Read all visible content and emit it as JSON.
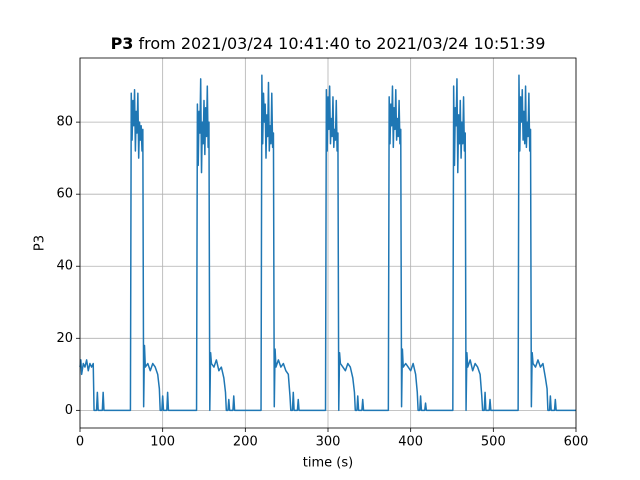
{
  "chart_data": {
    "type": "line",
    "title_prefix": "P3",
    "title": "from 2021/03/24 10:41:40 to 2021/03/24 10:51:39",
    "x_label": "time (s)",
    "y_label": "P3",
    "xlim": [
      0,
      600
    ],
    "ylim": [
      -4.9,
      97.8
    ],
    "xticks": [
      0,
      100,
      200,
      300,
      400,
      500,
      600
    ],
    "yticks": [
      0,
      20,
      40,
      60,
      80
    ],
    "grid": true,
    "x": [
      0,
      1,
      2,
      4,
      6,
      8,
      10,
      12,
      14,
      16,
      17,
      20,
      21,
      22,
      27,
      28,
      29,
      61,
      62,
      63,
      64,
      65,
      66,
      67,
      68,
      69,
      70,
      71,
      72,
      73,
      74,
      75,
      76,
      77,
      78,
      79,
      82,
      85,
      88,
      91,
      94,
      96,
      97,
      99,
      100,
      101,
      105,
      106,
      107,
      141,
      142,
      143,
      144,
      145,
      146,
      147,
      148,
      149,
      150,
      151,
      152,
      153,
      154,
      155,
      156,
      157,
      158,
      159,
      162,
      165,
      168,
      171,
      174,
      176,
      177,
      179,
      180,
      181,
      185,
      186,
      187,
      219,
      220,
      221,
      222,
      223,
      224,
      225,
      226,
      227,
      228,
      229,
      230,
      231,
      232,
      233,
      234,
      235,
      236,
      237,
      240,
      243,
      246,
      249,
      252,
      254,
      255,
      257,
      258,
      259,
      263,
      264,
      265,
      297,
      298,
      299,
      300,
      301,
      302,
      303,
      304,
      305,
      306,
      307,
      308,
      309,
      310,
      311,
      312,
      313,
      314,
      315,
      318,
      321,
      324,
      327,
      330,
      332,
      333,
      335,
      336,
      337,
      341,
      342,
      343,
      373,
      374,
      375,
      376,
      377,
      378,
      379,
      380,
      381,
      382,
      383,
      384,
      385,
      386,
      387,
      388,
      389,
      390,
      391,
      394,
      397,
      400,
      403,
      406,
      408,
      409,
      411,
      412,
      413,
      417,
      418,
      419,
      451,
      452,
      453,
      454,
      455,
      456,
      457,
      458,
      459,
      460,
      461,
      462,
      463,
      464,
      465,
      466,
      467,
      468,
      469,
      472,
      475,
      478,
      481,
      484,
      486,
      487,
      489,
      490,
      491,
      495,
      496,
      497,
      530,
      531,
      532,
      533,
      534,
      535,
      536,
      537,
      538,
      539,
      540,
      541,
      542,
      543,
      544,
      545,
      546,
      547,
      548,
      551,
      554,
      557,
      560,
      563,
      565,
      566,
      568,
      569,
      570,
      574,
      575,
      576,
      600
    ],
    "series": [
      {
        "color": "#1f77b4",
        "values": [
          12,
          14,
          10,
          13,
          12,
          14,
          11,
          13,
          12,
          13,
          0,
          0,
          5,
          0,
          0,
          5,
          0,
          0,
          88,
          75,
          86,
          79,
          89,
          72,
          83,
          77,
          88,
          70,
          80,
          75,
          79,
          72,
          78,
          1,
          18,
          12,
          13,
          11,
          13,
          12,
          10,
          6,
          0,
          0,
          4,
          0,
          0,
          5,
          0,
          0,
          85,
          68,
          83,
          77,
          92,
          66,
          80,
          74,
          86,
          71,
          84,
          76,
          90,
          73,
          80,
          0,
          16,
          13,
          12,
          14,
          11,
          12,
          9,
          5,
          0,
          0,
          3,
          0,
          0,
          4,
          0,
          0,
          93,
          74,
          88,
          80,
          85,
          70,
          82,
          76,
          91,
          72,
          79,
          74,
          88,
          73,
          77,
          1,
          17,
          12,
          14,
          12,
          13,
          11,
          10,
          4,
          0,
          0,
          5,
          0,
          0,
          3,
          0,
          0,
          89,
          72,
          87,
          78,
          90,
          74,
          81,
          76,
          87,
          73,
          78,
          75,
          86,
          72,
          77,
          0,
          16,
          13,
          12,
          11,
          13,
          12,
          9,
          5,
          0,
          0,
          4,
          0,
          0,
          3,
          0,
          0,
          87,
          74,
          85,
          79,
          90,
          73,
          84,
          78,
          89,
          75,
          81,
          76,
          86,
          74,
          78,
          1,
          17,
          12,
          13,
          12,
          11,
          13,
          10,
          5,
          0,
          0,
          4,
          0,
          0,
          2,
          0,
          0,
          90,
          68,
          84,
          79,
          92,
          66,
          82,
          74,
          86,
          70,
          80,
          74,
          87,
          72,
          77,
          0,
          16,
          12,
          14,
          11,
          13,
          12,
          10,
          4,
          0,
          0,
          5,
          0,
          0,
          3,
          0,
          0,
          93,
          72,
          87,
          80,
          89,
          75,
          83,
          74,
          90,
          73,
          80,
          76,
          88,
          72,
          78,
          1,
          16,
          13,
          12,
          14,
          12,
          13,
          9,
          6,
          0,
          0,
          4,
          0,
          0,
          3,
          0,
          0
        ]
      }
    ]
  }
}
